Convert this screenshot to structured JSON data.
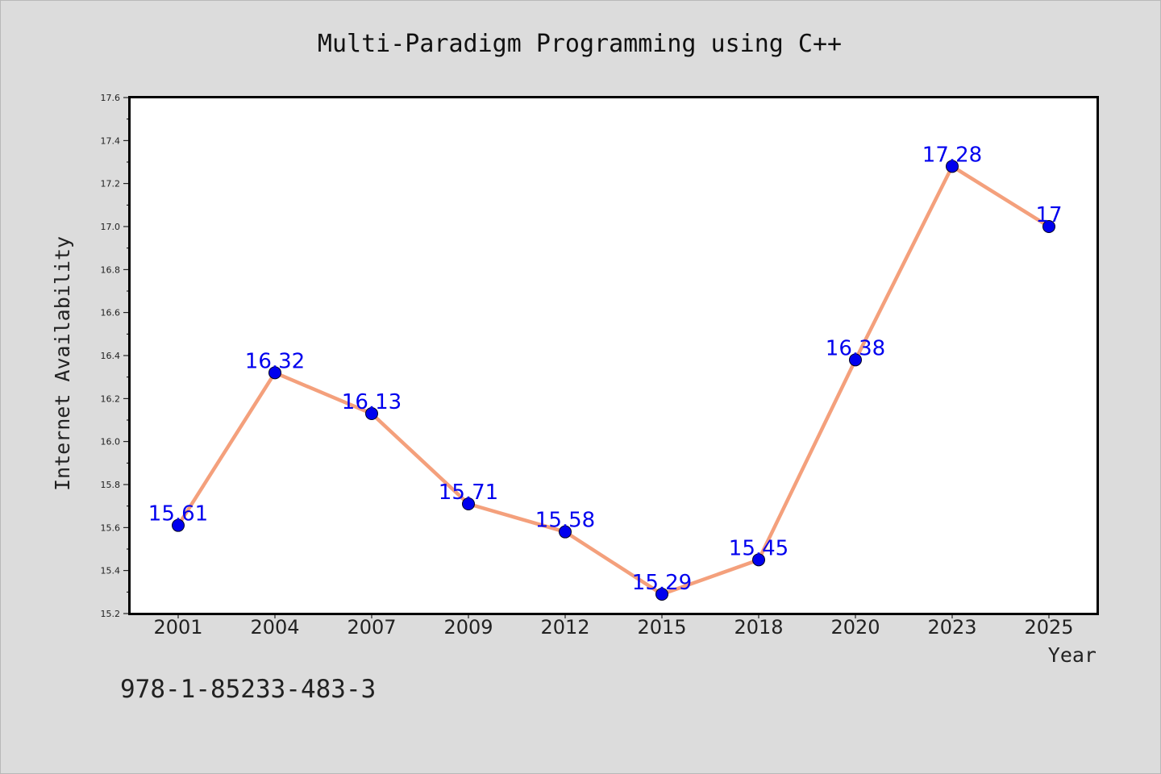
{
  "chart_data": {
    "type": "line",
    "title": "Multi-Paradigm Programming using C++",
    "xlabel": "Year",
    "ylabel": "Internet Availability",
    "categories": [
      "2001",
      "2004",
      "2007",
      "2009",
      "2012",
      "2015",
      "2018",
      "2020",
      "2023",
      "2025"
    ],
    "series": [
      {
        "values": [
          15.61,
          16.32,
          16.13,
          15.71,
          15.58,
          15.29,
          15.45,
          16.38,
          17.28,
          17
        ]
      }
    ],
    "data_labels": [
      "15.61",
      "16.32",
      "16.13",
      "15.71",
      "15.58",
      "15.29",
      "15.45",
      "16.38",
      "17.28",
      "17"
    ],
    "ylim": [
      15.2,
      17.6
    ],
    "yticks": [
      "15.2",
      "15.4",
      "15.6",
      "15.8",
      "16.0",
      "16.2",
      "16.4",
      "16.6",
      "16.8",
      "17.0",
      "17.2",
      "17.4",
      "17.6"
    ],
    "grid": false,
    "legend": "none",
    "colors": {
      "line": "#f4a07c",
      "marker": "#0000ee",
      "data_label": "#0000ee",
      "plot_background": "#ffffff",
      "figure_background": "#dcdcdc"
    }
  },
  "footer": {
    "isbn": "978-1-85233-483-3"
  }
}
